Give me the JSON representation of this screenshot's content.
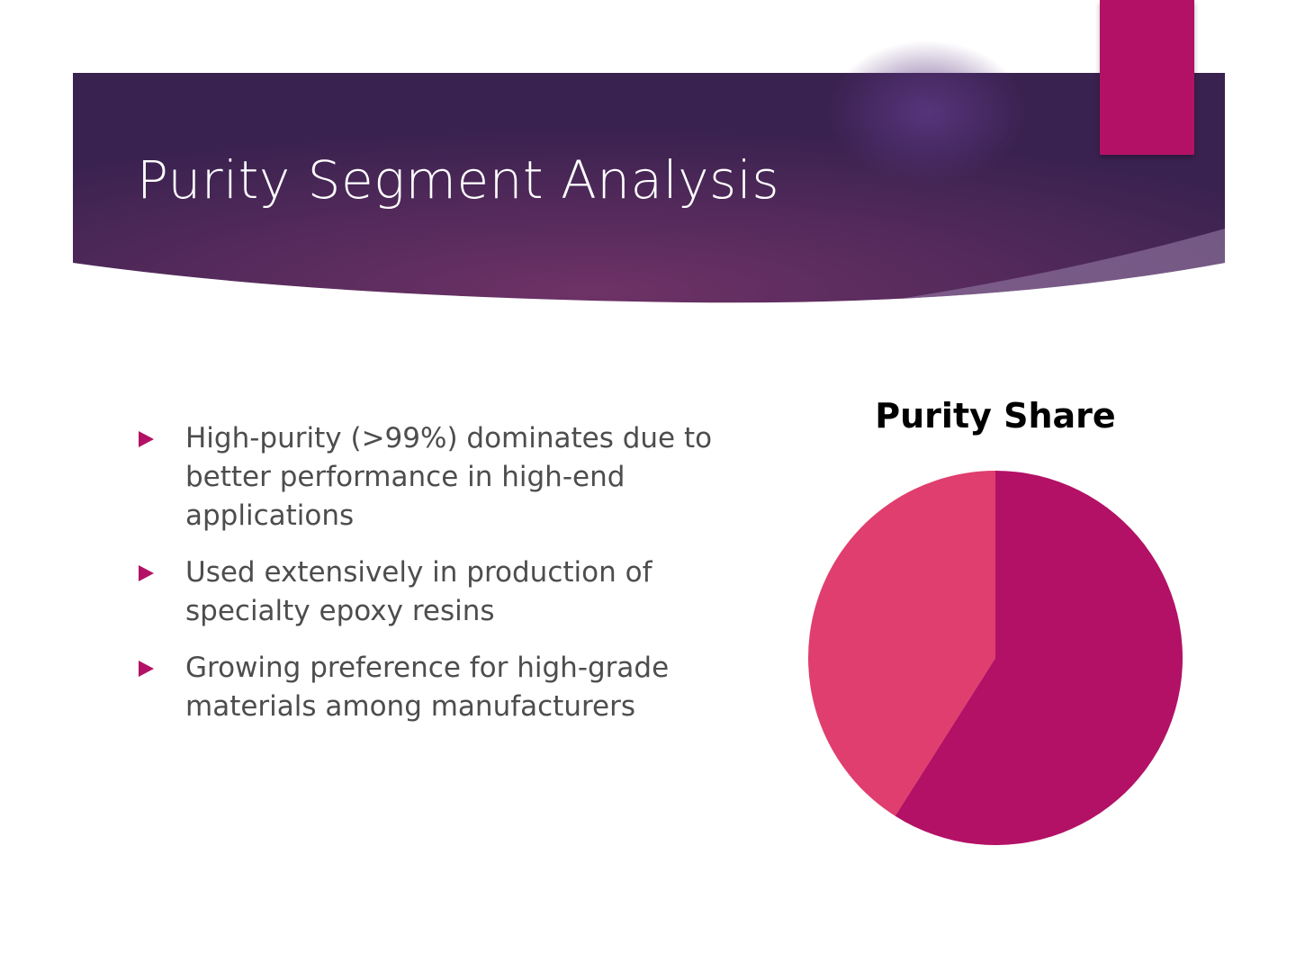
{
  "slide": {
    "title": "Purity Segment Analysis",
    "bullets": [
      "High-purity (>99%) dominates due to better performance in high-end applications",
      "Used extensively in production of specialty epoxy resins",
      "Growing preference for high-grade materials among manufacturers"
    ]
  },
  "chart_data": {
    "type": "pie",
    "title": "Purity Share",
    "values": [
      59,
      41
    ],
    "colors": [
      "#b31166",
      "#e03e6e"
    ]
  }
}
